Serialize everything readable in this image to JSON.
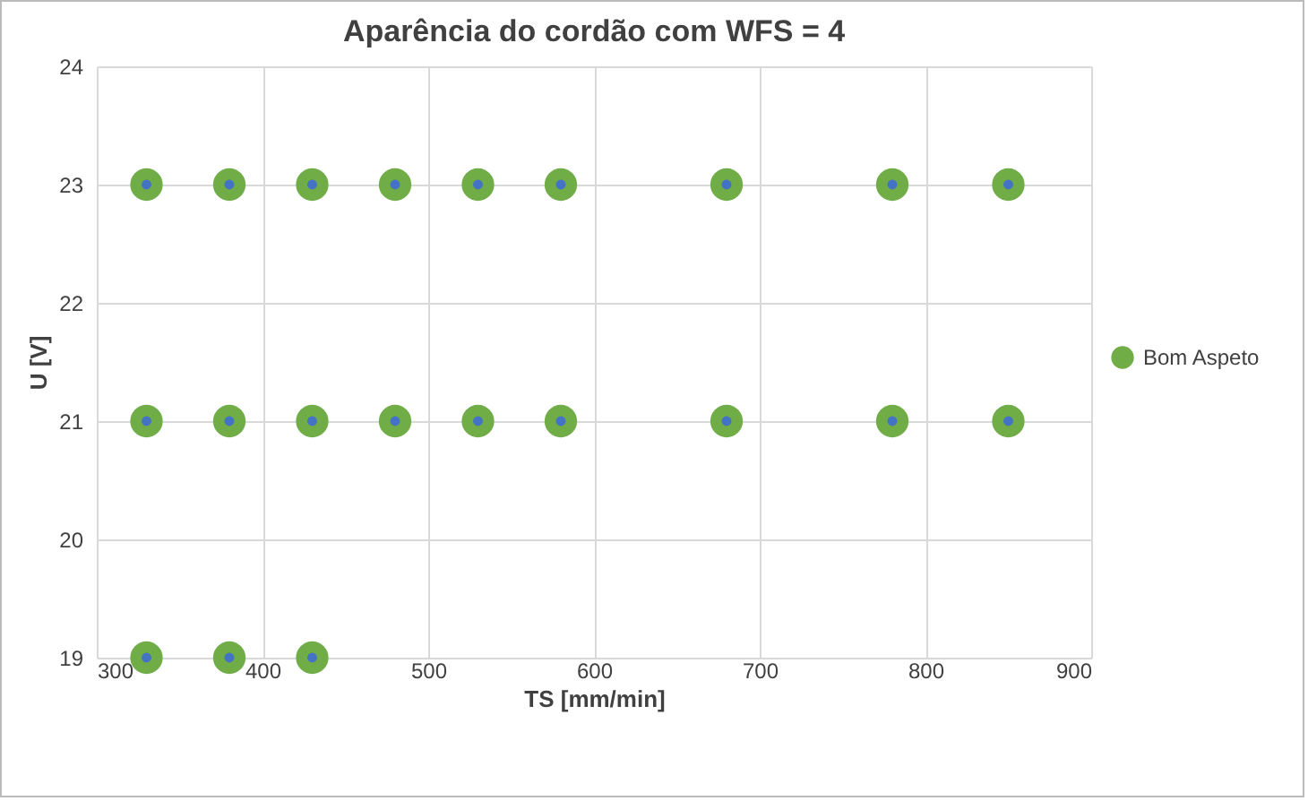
{
  "chart_data": {
    "type": "scatter",
    "title": "Aparência do cordão com WFS = 4",
    "xlabel": "TS [mm/min]",
    "ylabel": "U [V]",
    "series": [
      {
        "name": "Bom Aspeto",
        "color": "#70ad47",
        "x": [
          330,
          380,
          430,
          480,
          530,
          580,
          680,
          780,
          850,
          330,
          380,
          430,
          480,
          530,
          580,
          680,
          780,
          850,
          330,
          380,
          430
        ],
        "values": [
          23,
          23,
          23,
          23,
          23,
          23,
          23,
          23,
          23,
          21,
          21,
          21,
          21,
          21,
          21,
          21,
          21,
          21,
          19,
          19,
          19
        ]
      },
      {
        "color": "#4472c4",
        "x": [
          330,
          380,
          430,
          480,
          530,
          580,
          680,
          780,
          850,
          330,
          380,
          430,
          480,
          530,
          580,
          680,
          780,
          850,
          330,
          380,
          430
        ],
        "values": [
          23,
          23,
          23,
          23,
          23,
          23,
          23,
          23,
          23,
          21,
          21,
          21,
          21,
          21,
          21,
          21,
          21,
          21,
          19,
          19,
          19
        ]
      }
    ],
    "xlim": [
      300,
      900
    ],
    "xticks": [
      300,
      400,
      500,
      600,
      700,
      800,
      900
    ],
    "ylim": [
      19,
      24
    ],
    "yticks": [
      19,
      20,
      21,
      22,
      23,
      24
    ],
    "grid": true,
    "legend": "right",
    "marker": "circle"
  }
}
